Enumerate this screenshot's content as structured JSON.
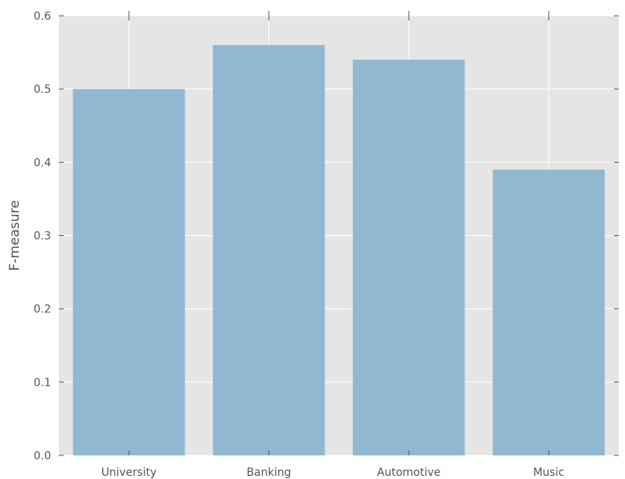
{
  "chart_data": {
    "type": "bar",
    "categories": [
      "University",
      "Banking",
      "Automotive",
      "Music"
    ],
    "values": [
      0.5,
      0.56,
      0.54,
      0.39
    ],
    "title": "",
    "xlabel": "",
    "ylabel": "F-measure",
    "ylim": [
      0,
      0.6
    ],
    "yticks": [
      "0.0",
      "0.1",
      "0.2",
      "0.3",
      "0.4",
      "0.5",
      "0.6"
    ],
    "grid": true,
    "colors": {
      "bar": "#8cb5d0",
      "plot_background": "#e5e5e5",
      "grid": "#ffffff",
      "text": "#555555"
    }
  }
}
